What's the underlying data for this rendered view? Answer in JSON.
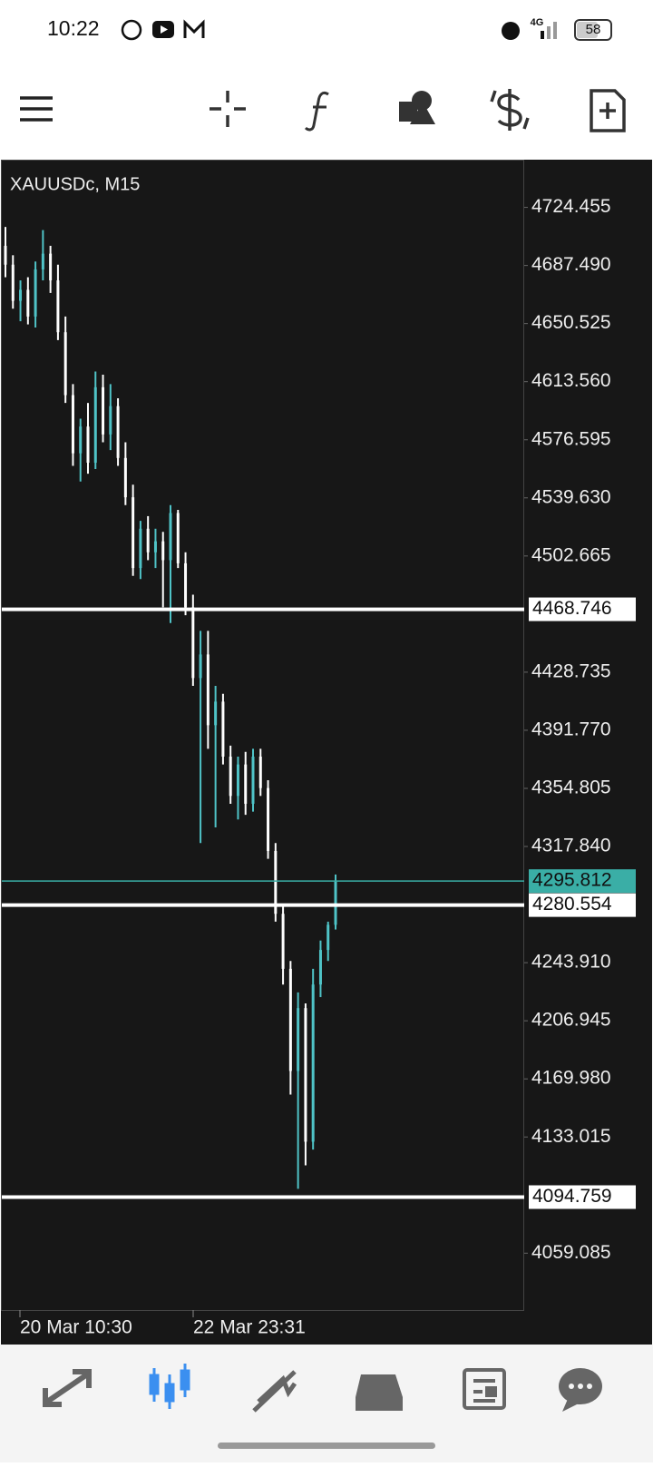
{
  "status_bar": {
    "time": "10:22",
    "network": "4G",
    "battery": "58"
  },
  "chart_data": {
    "type": "candlestick",
    "title": "XAUUSDc, M15",
    "up_color": "#4fc3c7",
    "down_color": "#ffffff",
    "open": [
      4700,
      4688,
      4665,
      4672,
      4655,
      4685,
      4695,
      4678,
      4645,
      4605,
      4568,
      4585,
      4562,
      4610,
      4580,
      4598,
      4565,
      4540,
      4495,
      4520,
      4505,
      4512,
      4500,
      4530,
      4498,
      4470,
      4425,
      4440,
      4395,
      4410,
      4375,
      4350,
      4370,
      4345,
      4375,
      4355,
      4315,
      4275,
      4240,
      4175,
      4215,
      4130,
      4230,
      4252,
      4268
    ],
    "high": [
      4712,
      4694,
      4678,
      4680,
      4690,
      4710,
      4700,
      4688,
      4655,
      4612,
      4590,
      4600,
      4620,
      4618,
      4612,
      4603,
      4575,
      4548,
      4525,
      4528,
      4520,
      4518,
      4535,
      4532,
      4505,
      4478,
      4455,
      4455,
      4420,
      4415,
      4382,
      4375,
      4378,
      4380,
      4380,
      4360,
      4320,
      4280,
      4245,
      4225,
      4218,
      4240,
      4258,
      4270,
      4300
    ],
    "low": [
      4680,
      4660,
      4652,
      4650,
      4648,
      4678,
      4670,
      4640,
      4600,
      4560,
      4550,
      4555,
      4558,
      4575,
      4570,
      4560,
      4535,
      4490,
      4488,
      4500,
      4495,
      4470,
      4460,
      4495,
      4465,
      4420,
      4320,
      4380,
      4330,
      4370,
      4345,
      4335,
      4338,
      4340,
      4350,
      4310,
      4270,
      4230,
      4160,
      4100,
      4115,
      4125,
      4222,
      4245,
      4265
    ],
    "close": [
      4688,
      4665,
      4672,
      4655,
      4685,
      4695,
      4678,
      4645,
      4605,
      4568,
      4585,
      4562,
      4610,
      4580,
      4598,
      4565,
      4540,
      4495,
      4520,
      4505,
      4512,
      4500,
      4530,
      4498,
      4470,
      4425,
      4440,
      4395,
      4410,
      4375,
      4350,
      4370,
      4345,
      4375,
      4355,
      4315,
      4275,
      4240,
      4175,
      4215,
      4130,
      4230,
      4252,
      4268,
      4295.812
    ],
    "ylim": [
      4022.9,
      4754.8
    ],
    "yticks": [
      4724.455,
      {
        "value": 4687.49,
        "label": "4687.490"
      },
      4650.525,
      {
        "value": 4613.56,
        "label": "4613.560"
      },
      4576.595,
      {
        "value": 4539.63,
        "label": "4539.630"
      },
      4502.665,
      4428.735,
      {
        "value": 4391.77,
        "label": "4391.770"
      },
      4354.805,
      {
        "value": 4317.84,
        "label": "4317.840"
      },
      {
        "value": 4243.91,
        "label": "4243.910"
      },
      4206.945,
      {
        "value": 4169.98,
        "label": "4169.980"
      },
      4133.015,
      4059.085
    ],
    "hlines": [
      4468.746,
      4280.554,
      4094.759
    ],
    "hline_color": "#ffffff",
    "current_price": 4295.812,
    "current_color": "#3aaea6",
    "x_labels": [
      "20 Mar 10:30",
      "22 Mar 23:31"
    ]
  }
}
